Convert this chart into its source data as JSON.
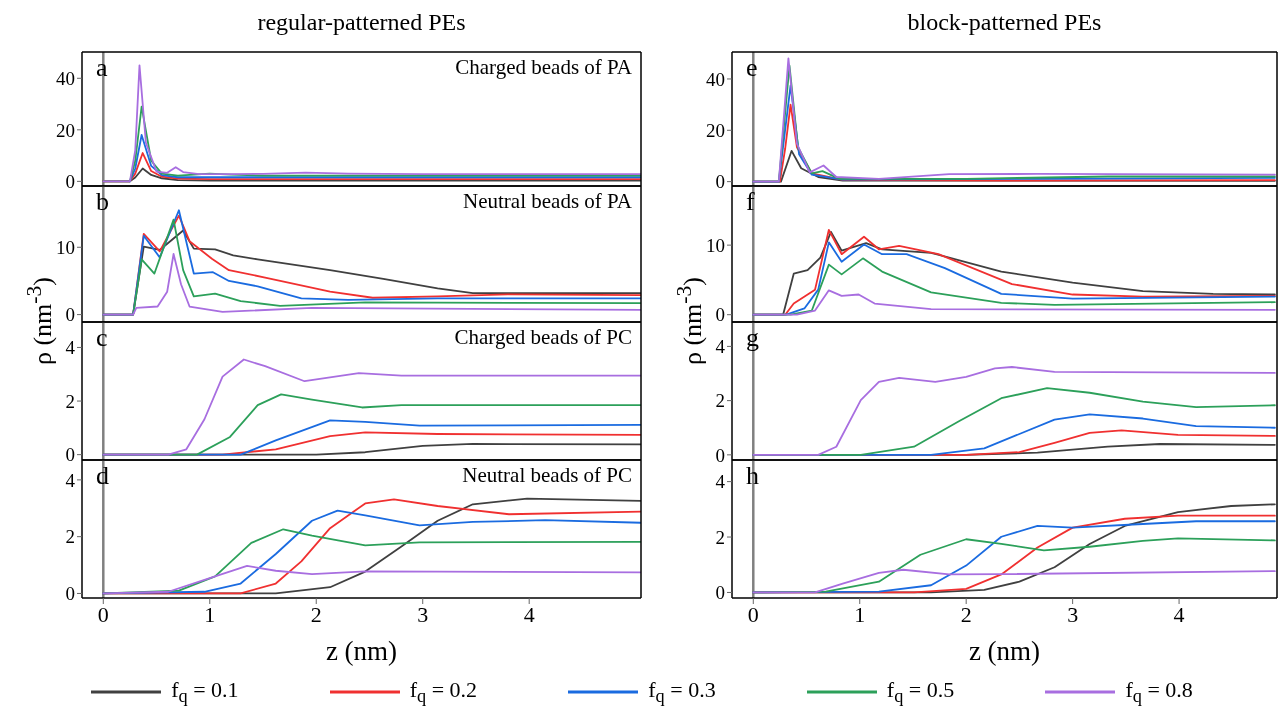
{
  "chart_data": [
    {
      "type": "line",
      "title": "regular-patterned PEs",
      "annotations": [
        "a",
        "Charged beads of PA"
      ],
      "xlim": [
        -0.2,
        5.05
      ],
      "xticks": [
        0,
        1,
        2,
        3,
        4
      ],
      "ylim": [
        -1.8,
        50.2
      ],
      "yticks": [
        0,
        20,
        40
      ],
      "tick_labels": "y",
      "ref_lines": [
        {
          "axis": "x",
          "value": 0,
          "color": "#808080"
        }
      ],
      "series": [
        {
          "color": "#404040",
          "x": [
            0,
            0.25,
            0.3,
            0.37,
            0.45,
            0.55,
            0.7,
            1.0,
            2,
            3,
            5.05
          ],
          "values": [
            0,
            0,
            1.5,
            5,
            2.5,
            1.2,
            0.5,
            0.3,
            0.3,
            0.3,
            0.3
          ]
        },
        {
          "color": "#f03030",
          "x": [
            0,
            0.25,
            0.3,
            0.37,
            0.45,
            0.55,
            0.7,
            1.0,
            2,
            3,
            5.05
          ],
          "values": [
            0,
            0,
            3,
            11,
            4,
            1.8,
            1.1,
            0.9,
            0.9,
            0.9,
            0.9
          ]
        },
        {
          "color": "#1a6be0",
          "x": [
            0.25,
            0.3,
            0.36,
            0.45,
            0.55,
            0.7,
            1.0,
            2,
            3,
            5.05
          ],
          "values": [
            0,
            5,
            18,
            6,
            2.4,
            1.6,
            1.6,
            1.6,
            1.6,
            1.6
          ]
        },
        {
          "color": "#2ca05a",
          "x": [
            0,
            0.25,
            0.3,
            0.36,
            0.45,
            0.55,
            0.7,
            0.85,
            1.0,
            1.2,
            1.5,
            2,
            3,
            5.05
          ],
          "values": [
            0,
            0,
            8,
            29,
            8,
            3.0,
            2.2,
            2.6,
            3.0,
            2.6,
            2.2,
            2.2,
            2.2,
            2.2
          ]
        },
        {
          "color": "#a86ee0",
          "x": [
            0,
            0.25,
            0.3,
            0.34,
            0.4,
            0.5,
            0.6,
            0.68,
            0.75,
            0.9,
            1.2,
            1.5,
            1.9,
            2.3,
            3,
            5.05
          ],
          "values": [
            0,
            0,
            12,
            45,
            15,
            3.8,
            3.3,
            5.5,
            3.6,
            2.8,
            2.8,
            2.9,
            3.4,
            3.0,
            2.8,
            2.8
          ]
        }
      ]
    },
    {
      "type": "line",
      "ylabel": "ρ (nm$^{-3}$)",
      "annotations": [
        "b",
        "Neutral beads of PA"
      ],
      "xlim": [
        -0.2,
        5.05
      ],
      "xticks": [
        0,
        1,
        2,
        3,
        4
      ],
      "ylim": [
        -1.1,
        19.1
      ],
      "yticks": [
        0,
        10
      ],
      "tick_labels": "y",
      "ref_lines": [
        {
          "axis": "x",
          "value": 0,
          "color": "#808080"
        }
      ],
      "series": [
        {
          "color": "#404040",
          "x": [
            0,
            0.28,
            0.38,
            0.53,
            0.75,
            0.85,
            1.05,
            1.22,
            1.45,
            2.13,
            2.63,
            3.14,
            3.47,
            5.05
          ],
          "values": [
            0,
            0,
            10.1,
            9.6,
            12.5,
            9.8,
            9.7,
            8.8,
            8.2,
            6.6,
            5.3,
            3.9,
            3.2,
            3.2
          ]
        },
        {
          "color": "#f03030",
          "x": [
            0,
            0.28,
            0.38,
            0.53,
            0.71,
            0.81,
            1.02,
            1.18,
            1.52,
            2.13,
            2.53,
            3.14,
            3.8,
            5.05
          ],
          "values": [
            0,
            0,
            12,
            9.4,
            14.7,
            10.9,
            8.3,
            6.6,
            5.5,
            3.4,
            2.5,
            2.7,
            3.0,
            2.9
          ]
        },
        {
          "color": "#1a6be0",
          "x": [
            0,
            0.28,
            0.38,
            0.53,
            0.71,
            0.85,
            1.03,
            1.18,
            1.45,
            1.86,
            2.3,
            3.14,
            5.05
          ],
          "values": [
            0,
            0,
            11.7,
            8.5,
            15.5,
            6.1,
            6.3,
            5.0,
            4.2,
            2.4,
            2.2,
            2.4,
            2.4
          ]
        },
        {
          "color": "#2ca05a",
          "x": [
            0,
            0.28,
            0.36,
            0.48,
            0.66,
            0.75,
            0.85,
            1.05,
            1.29,
            1.66,
            2.46,
            5.05
          ],
          "values": [
            0,
            0,
            8.2,
            6.1,
            14.1,
            6.6,
            2.7,
            3.1,
            2.0,
            1.3,
            1.8,
            1.7
          ]
        },
        {
          "color": "#a86ee0",
          "x": [
            0,
            0.28,
            0.31,
            0.51,
            0.6,
            0.66,
            0.73,
            0.81,
            1.12,
            1.96,
            5.05
          ],
          "values": [
            0,
            0,
            1.0,
            1.2,
            3.4,
            9.0,
            4.5,
            1.2,
            0.4,
            1.0,
            0.7
          ]
        }
      ]
    },
    {
      "type": "line",
      "annotations": [
        "c",
        "Charged beads of PC"
      ],
      "xlim": [
        -0.2,
        5.05
      ],
      "xticks": [
        0,
        1,
        2,
        3,
        4
      ],
      "ylim": [
        -0.2,
        4.95
      ],
      "yticks": [
        0,
        2,
        4
      ],
      "tick_labels": "y",
      "ref_lines": [
        {
          "axis": "x",
          "value": 0,
          "color": "#808080"
        }
      ],
      "series": [
        {
          "color": "#404040",
          "x": [
            0,
            2,
            2.46,
            3.0,
            3.47,
            5.05
          ],
          "values": [
            0,
            0,
            0.09,
            0.33,
            0.4,
            0.38
          ]
        },
        {
          "color": "#f03030",
          "x": [
            0,
            1.12,
            1.62,
            2.13,
            2.46,
            3.14,
            5.05
          ],
          "values": [
            0,
            0,
            0.2,
            0.69,
            0.83,
            0.77,
            0.74
          ]
        },
        {
          "color": "#1a6be0",
          "x": [
            0,
            1.29,
            1.62,
            2.13,
            2.46,
            2.97,
            5.05
          ],
          "values": [
            0,
            0,
            0.53,
            1.28,
            1.22,
            1.08,
            1.11
          ]
        },
        {
          "color": "#2ca05a",
          "x": [
            0,
            0.88,
            1.19,
            1.45,
            1.67,
            1.96,
            2.43,
            2.8,
            5.05
          ],
          "values": [
            0,
            0,
            0.66,
            1.85,
            2.25,
            2.05,
            1.76,
            1.85,
            1.85
          ]
        },
        {
          "color": "#a86ee0",
          "x": [
            0,
            0.61,
            0.78,
            0.95,
            1.12,
            1.32,
            1.52,
            1.89,
            2.4,
            2.8,
            5.05
          ],
          "values": [
            0,
            0,
            0.2,
            1.32,
            2.91,
            3.55,
            3.3,
            2.74,
            3.04,
            2.95,
            2.95
          ]
        }
      ]
    },
    {
      "type": "line",
      "xlabel": "z (nm)",
      "legend": "bottom",
      "annotations": [
        "d",
        "Neutral beads of PC"
      ],
      "xlim": [
        -0.2,
        5.05
      ],
      "xticks": [
        0,
        1,
        2,
        3,
        4
      ],
      "ylim": [
        -0.16,
        4.7
      ],
      "yticks": [
        0,
        2,
        4
      ],
      "ref_lines": [
        {
          "axis": "x",
          "value": 0,
          "color": "#808080"
        }
      ],
      "series": [
        {
          "name": "f$_{q}$ = 0.1",
          "color": "#404040",
          "x": [
            0,
            1.62,
            2.13,
            2.46,
            2.8,
            3.14,
            3.47,
            3.98,
            5.05
          ],
          "values": [
            0,
            0,
            0.22,
            0.77,
            1.65,
            2.56,
            3.14,
            3.34,
            3.26
          ]
        },
        {
          "name": "f$_{q}$ = 0.2",
          "color": "#f03030",
          "x": [
            0,
            1.29,
            1.62,
            1.86,
            2.13,
            2.46,
            2.73,
            3.14,
            3.81,
            5.05
          ],
          "values": [
            0,
            0,
            0.35,
            1.13,
            2.3,
            3.17,
            3.31,
            3.08,
            2.79,
            2.88
          ]
        },
        {
          "name": "f$_{q}$ = 0.3",
          "color": "#1a6be0",
          "x": [
            0,
            0.95,
            1.29,
            1.62,
            1.96,
            2.2,
            2.46,
            2.97,
            3.47,
            4.15,
            5.05
          ],
          "values": [
            0,
            0.06,
            0.35,
            1.39,
            2.56,
            2.92,
            2.75,
            2.4,
            2.52,
            2.58,
            2.49
          ]
        },
        {
          "name": "f$_{q}$ = 0.5",
          "color": "#2ca05a",
          "x": [
            0,
            0.71,
            1.05,
            1.39,
            1.69,
            1.96,
            2.46,
            2.97,
            5.05
          ],
          "values": [
            0,
            0.1,
            0.6,
            1.78,
            2.26,
            2.04,
            1.69,
            1.8,
            1.82
          ]
        },
        {
          "name": "f$_{q}$ = 0.8",
          "color": "#a86ee0",
          "x": [
            0,
            0.61,
            0.95,
            1.35,
            1.62,
            1.96,
            2.46,
            5.05
          ],
          "values": [
            0,
            0.06,
            0.48,
            0.97,
            0.8,
            0.68,
            0.78,
            0.74
          ]
        }
      ]
    },
    {
      "type": "line",
      "title": "block-patterned PEs",
      "annotations": [
        "e"
      ],
      "xlim": [
        -0.2,
        4.92
      ],
      "xticks": [
        0,
        1,
        2,
        3,
        4
      ],
      "ylim": [
        -1.7,
        50.5
      ],
      "yticks": [
        0,
        20,
        40
      ],
      "tick_labels": "y",
      "ref_lines": [
        {
          "axis": "x",
          "value": 0,
          "color": "#808080"
        }
      ],
      "series": [
        {
          "color": "#404040",
          "x": [
            0,
            0.26,
            0.36,
            0.45,
            0.61,
            0.84,
            2,
            4.9
          ],
          "values": [
            0,
            0,
            12,
            5.2,
            1.8,
            0.4,
            0.4,
            0.3
          ]
        },
        {
          "color": "#f03030",
          "x": [
            0,
            0.25,
            0.3,
            0.35,
            0.41,
            0.55,
            0.84,
            2.33,
            4.9
          ],
          "values": [
            0,
            0,
            13,
            30,
            13.4,
            3.2,
            0.7,
            0.4,
            0.6
          ]
        },
        {
          "color": "#1a6be0",
          "x": [
            0,
            0.24,
            0.35,
            0.43,
            0.55,
            0.84,
            2.67,
            4.9
          ],
          "values": [
            0,
            0,
            37.4,
            10.7,
            2.7,
            0.8,
            1.1,
            1.5
          ]
        },
        {
          "color": "#2ca05a",
          "x": [
            0,
            0.24,
            0.34,
            0.42,
            0.55,
            0.65,
            0.81,
            2,
            3.33,
            4.9
          ],
          "values": [
            0,
            0,
            45.2,
            13.4,
            3.2,
            4.1,
            1.1,
            1.1,
            2.0,
            2.0
          ]
        },
        {
          "color": "#a86ee0",
          "x": [
            0,
            0.24,
            0.33,
            0.41,
            0.53,
            0.66,
            0.78,
            1.18,
            1.84,
            2.67,
            4.9
          ],
          "values": [
            0,
            0,
            48,
            14.8,
            3.6,
            6.3,
            1.8,
            1.1,
            2.9,
            3.0,
            2.7
          ]
        }
      ]
    },
    {
      "type": "line",
      "ylabel": "ρ (nm$^{-3}$)",
      "annotations": [
        "f"
      ],
      "xlim": [
        -0.2,
        4.92
      ],
      "xticks": [
        0,
        1,
        2,
        3,
        4
      ],
      "ylim": [
        -1.05,
        18.5
      ],
      "yticks": [
        0,
        10
      ],
      "tick_labels": "y",
      "ref_lines": [
        {
          "axis": "x",
          "value": 0,
          "color": "#808080"
        }
      ],
      "series": [
        {
          "color": "#404040",
          "x": [
            0,
            0.28,
            0.38,
            0.51,
            0.63,
            0.73,
            0.83,
            1.06,
            1.21,
            1.67,
            2.33,
            3.0,
            3.66,
            4.32,
            4.9
          ],
          "values": [
            0,
            0,
            5.9,
            6.4,
            8.2,
            11.9,
            9.2,
            10.3,
            9.4,
            8.9,
            6.2,
            4.6,
            3.4,
            3.0,
            2.9
          ]
        },
        {
          "color": "#f03030",
          "x": [
            0,
            0.3,
            0.38,
            0.58,
            0.71,
            0.83,
            1.04,
            1.18,
            1.37,
            1.74,
            2.43,
            3.0,
            3.66,
            4.9
          ],
          "values": [
            0,
            0,
            1.6,
            3.6,
            12.2,
            8.7,
            11.2,
            9.4,
            9.9,
            8.7,
            4.4,
            2.9,
            2.6,
            2.7
          ]
        },
        {
          "color": "#1a6be0",
          "x": [
            0,
            0.31,
            0.48,
            0.61,
            0.71,
            0.83,
            1.04,
            1.21,
            1.44,
            1.8,
            2.33,
            3.0,
            4.9
          ],
          "values": [
            0,
            0,
            0.9,
            3.6,
            10.4,
            7.6,
            10.1,
            8.7,
            8.7,
            6.7,
            3.0,
            2.3,
            2.6
          ]
        },
        {
          "color": "#2ca05a",
          "x": [
            0,
            0.35,
            0.55,
            0.71,
            0.83,
            1.03,
            1.21,
            1.67,
            2.33,
            2.83,
            4.9
          ],
          "values": [
            0,
            0,
            0.6,
            7.2,
            5.8,
            8.1,
            6.2,
            3.2,
            1.7,
            1.4,
            1.8
          ]
        },
        {
          "color": "#a86ee0",
          "x": [
            0,
            0.41,
            0.58,
            0.71,
            0.83,
            0.99,
            1.14,
            1.67,
            4.9
          ],
          "values": [
            0,
            0,
            0.6,
            3.5,
            2.7,
            2.9,
            1.6,
            0.8,
            0.7
          ]
        }
      ]
    },
    {
      "type": "line",
      "annotations": [
        "g"
      ],
      "xlim": [
        -0.2,
        4.92
      ],
      "xticks": [
        0,
        1,
        2,
        3,
        4
      ],
      "ylim": [
        -0.19,
        4.9
      ],
      "yticks": [
        0,
        2,
        4
      ],
      "tick_labels": "y",
      "ref_lines": [
        {
          "axis": "x",
          "value": 0,
          "color": "#808080"
        }
      ],
      "series": [
        {
          "color": "#404040",
          "x": [
            0,
            2,
            2.67,
            3.33,
            3.82,
            4.9
          ],
          "values": [
            0,
            0,
            0.08,
            0.3,
            0.4,
            0.37
          ]
        },
        {
          "color": "#f03030",
          "x": [
            0,
            2,
            2.5,
            2.83,
            3.16,
            3.46,
            3.99,
            4.9
          ],
          "values": [
            0,
            0,
            0.1,
            0.44,
            0.81,
            0.9,
            0.74,
            0.7
          ]
        },
        {
          "color": "#1a6be0",
          "x": [
            0,
            1.67,
            2.17,
            2.5,
            2.83,
            3.16,
            3.66,
            4.16,
            4.9
          ],
          "values": [
            0,
            0,
            0.24,
            0.77,
            1.3,
            1.49,
            1.34,
            1.06,
            1.0
          ]
        },
        {
          "color": "#2ca05a",
          "x": [
            0,
            1.01,
            1.51,
            1.94,
            2.33,
            2.76,
            3.16,
            3.66,
            4.16,
            4.9
          ],
          "values": [
            0,
            0,
            0.3,
            1.26,
            2.09,
            2.46,
            2.29,
            1.96,
            1.76,
            1.83
          ]
        },
        {
          "color": "#a86ee0",
          "x": [
            0,
            0.61,
            0.78,
            1.01,
            1.18,
            1.37,
            1.71,
            2,
            2.27,
            2.43,
            2.83,
            4.9
          ],
          "values": [
            0,
            0,
            0.3,
            2.02,
            2.69,
            2.84,
            2.69,
            2.88,
            3.19,
            3.24,
            3.06,
            3.02
          ]
        }
      ]
    },
    {
      "type": "line",
      "xlabel": "z (nm)",
      "annotations": [
        "h"
      ],
      "xlim": [
        -0.2,
        4.92
      ],
      "xticks": [
        0,
        1,
        2,
        3,
        4
      ],
      "ylim": [
        -0.2,
        4.78
      ],
      "yticks": [
        0,
        2,
        4
      ],
      "ref_lines": [
        {
          "axis": "x",
          "value": 0,
          "color": "#808080"
        }
      ],
      "series": [
        {
          "color": "#404040",
          "x": [
            0,
            1.67,
            2.17,
            2.5,
            2.83,
            3.16,
            3.49,
            3.99,
            4.49,
            4.9
          ],
          "values": [
            0,
            0,
            0.09,
            0.39,
            0.91,
            1.75,
            2.4,
            2.9,
            3.12,
            3.18
          ]
        },
        {
          "color": "#f03030",
          "x": [
            0,
            1.51,
            2,
            2.33,
            2.67,
            3,
            3.49,
            3.99,
            4.9
          ],
          "values": [
            0,
            0,
            0.13,
            0.65,
            1.62,
            2.34,
            2.66,
            2.77,
            2.77
          ]
        },
        {
          "color": "#1a6be0",
          "x": [
            0,
            1.18,
            1.67,
            2,
            2.33,
            2.67,
            3,
            3.66,
            4.16,
            4.9
          ],
          "values": [
            0,
            0.03,
            0.26,
            0.97,
            2.01,
            2.4,
            2.34,
            2.47,
            2.57,
            2.57
          ]
        },
        {
          "color": "#2ca05a",
          "x": [
            0,
            0.68,
            1.18,
            1.57,
            2,
            2.33,
            2.73,
            3.16,
            3.66,
            3.99,
            4.9
          ],
          "values": [
            0,
            0.03,
            0.39,
            1.36,
            1.92,
            1.75,
            1.52,
            1.65,
            1.86,
            1.95,
            1.88
          ]
        },
        {
          "color": "#a86ee0",
          "x": [
            0,
            0.58,
            0.84,
            1.18,
            1.41,
            1.84,
            2.33,
            4.9
          ],
          "values": [
            0,
            0,
            0.32,
            0.71,
            0.82,
            0.65,
            0.66,
            0.77
          ]
        }
      ]
    }
  ]
}
